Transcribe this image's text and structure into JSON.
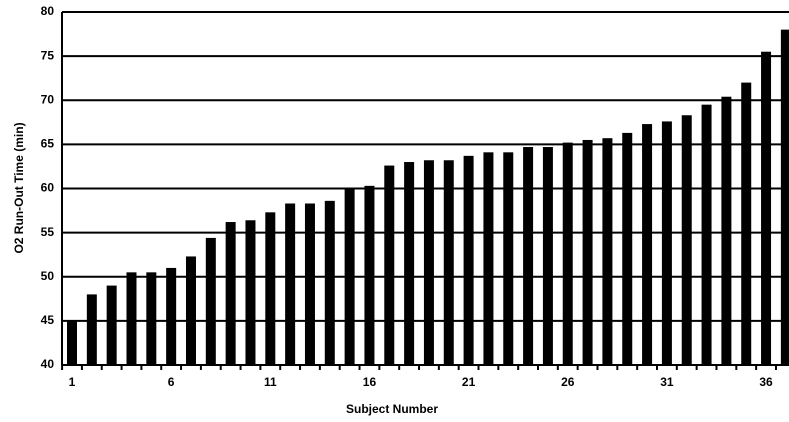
{
  "chart_data": {
    "type": "bar",
    "x_label": "Subject Number",
    "y_label": "O2 Run-Out Time (min)",
    "categories": [
      "1",
      null,
      null,
      null,
      null,
      "6",
      null,
      null,
      null,
      null,
      "11",
      null,
      null,
      null,
      null,
      "16",
      null,
      null,
      null,
      null,
      "21",
      null,
      null,
      null,
      null,
      "26",
      null,
      null,
      null,
      null,
      "31",
      null,
      null,
      null,
      null,
      "36",
      null
    ],
    "values": [
      45,
      48,
      49,
      50.5,
      50.5,
      51,
      52.3,
      54.4,
      56.2,
      56.4,
      57.3,
      58.3,
      58.3,
      58.6,
      60,
      60.3,
      62.6,
      63,
      63.2,
      63.2,
      63.7,
      64.1,
      64.1,
      64.7,
      64.7,
      65.2,
      65.5,
      65.7,
      66.3,
      67.3,
      67.6,
      68.3,
      69.5,
      70.4,
      72,
      75.5,
      78
    ],
    "color": "#000000",
    "ylim": [
      40,
      80
    ],
    "yticks": [
      40,
      45,
      50,
      55,
      60,
      65,
      70,
      75,
      80
    ],
    "grid": true
  }
}
